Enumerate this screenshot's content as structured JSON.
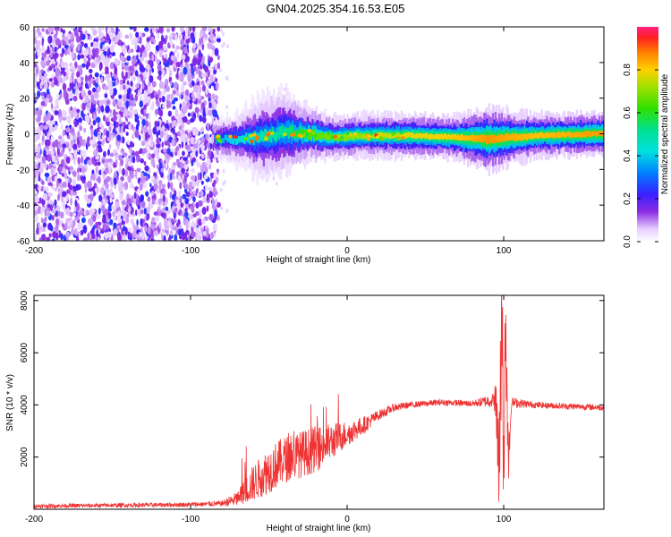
{
  "page": {
    "title": "GN04.2025.354.16.53.E05"
  },
  "chart_data": [
    {
      "id": "spectrogram",
      "type": "heatmap",
      "xlabel": "Height of straight line (km)",
      "ylabel": "Frequency (Hz)",
      "xlim": [
        -200,
        164
      ],
      "ylim": [
        -60,
        60
      ],
      "xticks": [
        -200,
        -100,
        0,
        100
      ],
      "xtick_labels": [
        "-200",
        "-100",
        "0",
        "100"
      ],
      "yticks": [
        -60,
        -40,
        -20,
        0,
        20,
        40,
        60
      ],
      "ytick_labels": [
        "-60",
        "-40",
        "-20",
        "0",
        "20",
        "40",
        "60"
      ],
      "noise_region": {
        "x_range": [
          -200,
          -82
        ],
        "description": "broadband noise up to ~0.4 normalized amplitude"
      },
      "signal_band": [
        {
          "x": -85,
          "freq": -3,
          "width": 4,
          "amp": 0.35
        },
        {
          "x": -70,
          "freq": -3,
          "width": 5,
          "amp": 0.45
        },
        {
          "x": -55,
          "freq": -2,
          "width": 8,
          "amp": 0.5
        },
        {
          "x": -40,
          "freq": 1,
          "width": 8,
          "amp": 0.55
        },
        {
          "x": -25,
          "freq": 0,
          "width": 5,
          "amp": 0.7
        },
        {
          "x": -10,
          "freq": -2,
          "width": 4,
          "amp": 0.75
        },
        {
          "x": 10,
          "freq": -1,
          "width": 4,
          "amp": 0.8
        },
        {
          "x": 40,
          "freq": -1,
          "width": 4,
          "amp": 0.85
        },
        {
          "x": 70,
          "freq": -2,
          "width": 4,
          "amp": 0.9
        },
        {
          "x": 90,
          "freq": -3,
          "width": 6,
          "amp": 0.95
        },
        {
          "x": 120,
          "freq": -1,
          "width": 4,
          "amp": 0.9
        },
        {
          "x": 164,
          "freq": 0,
          "width": 4,
          "amp": 0.95
        }
      ]
    },
    {
      "id": "colorbar",
      "type": "heatmap",
      "label": "Normalized spectral amplitude",
      "range": [
        0.0,
        1.0
      ],
      "ticks": [
        0.0,
        0.2,
        0.4,
        0.6,
        0.8
      ],
      "tick_labels": [
        "0.0",
        "0.2",
        "0.4",
        "0.6",
        "0.8"
      ]
    },
    {
      "id": "snr",
      "type": "line",
      "xlabel": "Height of straight line (km)",
      "ylabel": "SNR (10 * v/v)",
      "xlim": [
        -200,
        164
      ],
      "ylim": [
        0,
        8200
      ],
      "xticks": [
        -200,
        -100,
        0,
        100
      ],
      "xtick_labels": [
        "-200",
        "-100",
        "0",
        "100"
      ],
      "yticks": [
        2000,
        4000,
        6000,
        8000
      ],
      "ytick_labels": [
        "2000",
        "4000",
        "6000",
        "8000"
      ],
      "color": "#ee3333",
      "x": [
        -200,
        -150,
        -100,
        -80,
        -70,
        -60,
        -50,
        -40,
        -30,
        -20,
        -10,
        0,
        10,
        20,
        30,
        40,
        60,
        80,
        95,
        97,
        99,
        100,
        101,
        103,
        105,
        120,
        140,
        164
      ],
      "y": [
        120,
        150,
        180,
        220,
        400,
        1000,
        1500,
        1900,
        2100,
        2300,
        2600,
        2900,
        3200,
        3600,
        3900,
        4000,
        4100,
        4050,
        4200,
        1500,
        8000,
        600,
        7200,
        1800,
        4100,
        4000,
        3950,
        3900
      ],
      "noise_amplitude": [
        80,
        80,
        90,
        100,
        300,
        700,
        900,
        900,
        900,
        900,
        700,
        500,
        350,
        200,
        150,
        120,
        120,
        120,
        300,
        300,
        300,
        300,
        300,
        300,
        200,
        120,
        120,
        120
      ]
    }
  ]
}
